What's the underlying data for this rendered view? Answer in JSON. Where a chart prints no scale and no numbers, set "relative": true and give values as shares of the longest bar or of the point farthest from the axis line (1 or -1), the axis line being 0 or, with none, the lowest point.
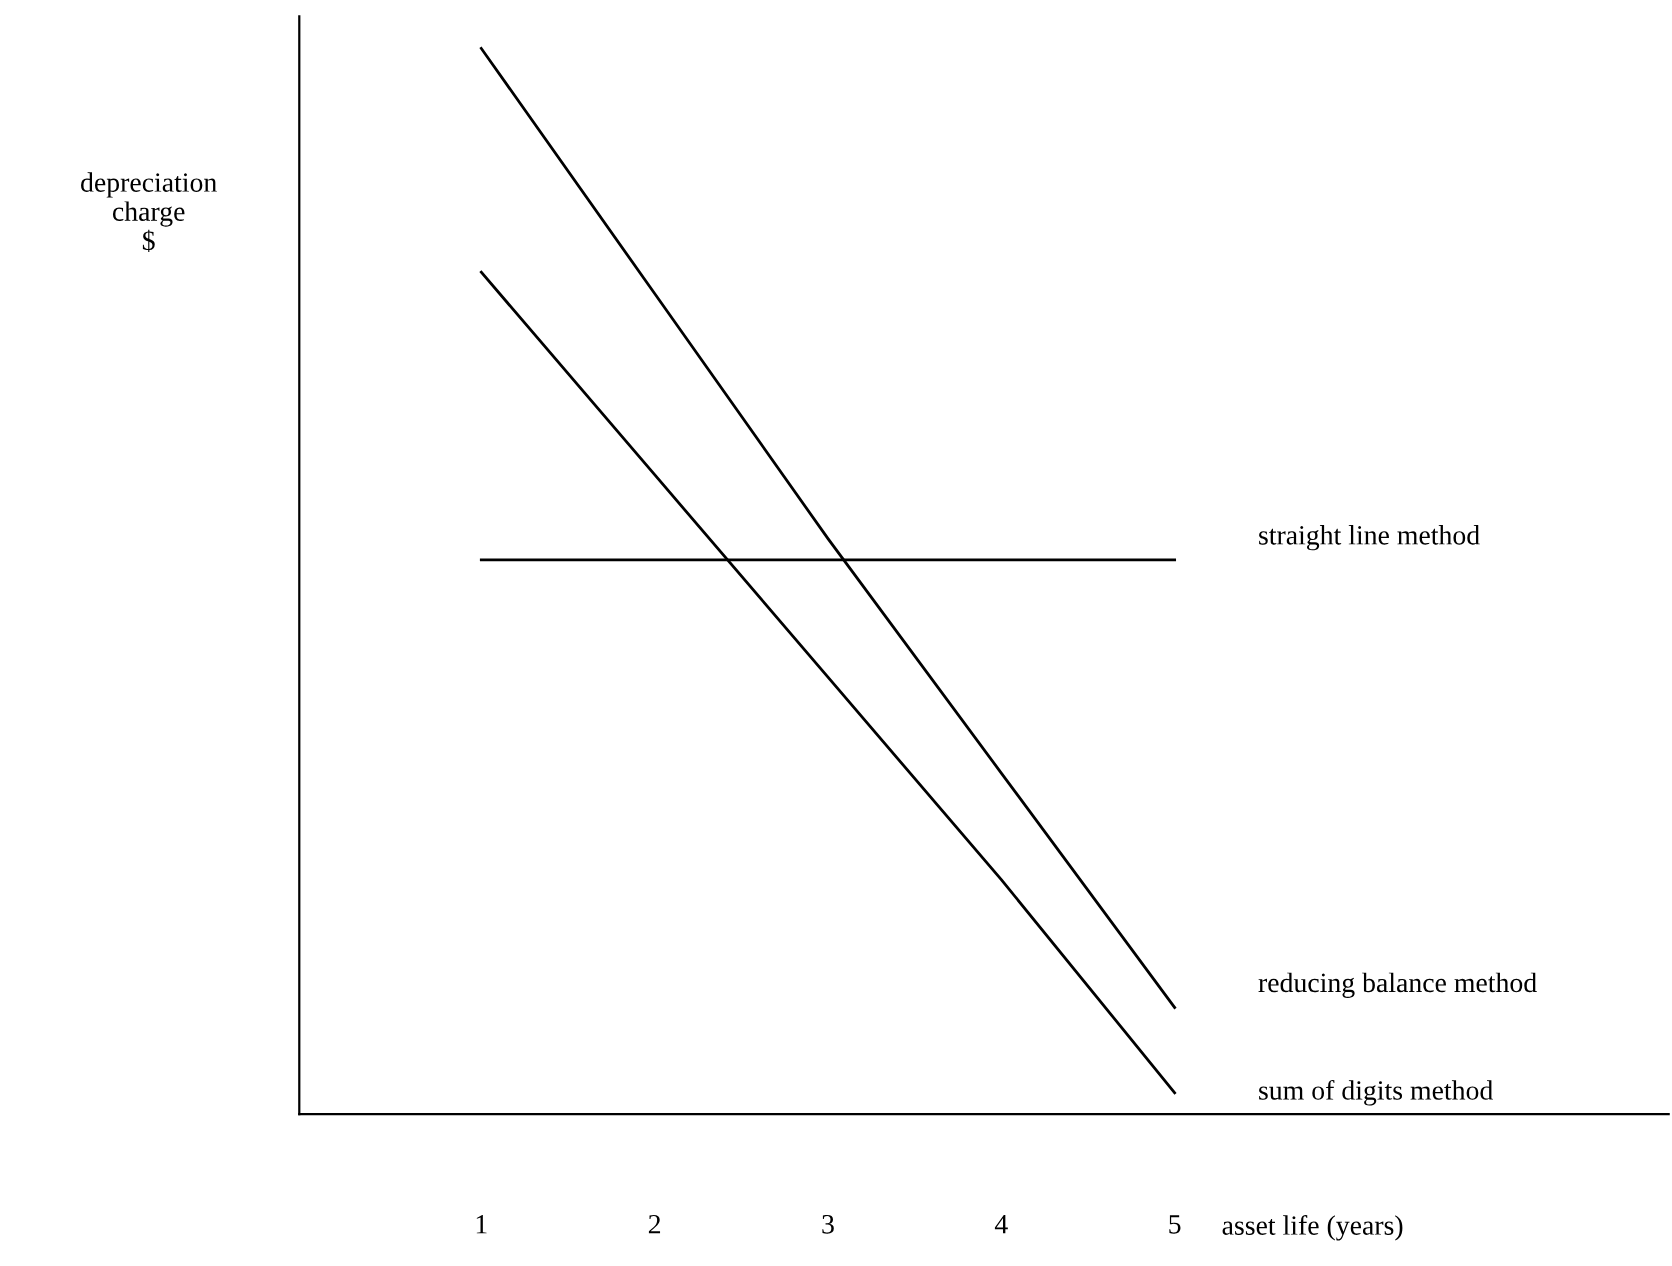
{
  "chart_data": {
    "type": "line",
    "relative": true,
    "xlabel": "asset life (years)",
    "ylabel": "depreciation\ncharge\n$",
    "x": [
      1,
      2,
      3,
      4,
      5
    ],
    "xlim": [
      -0.05,
      7.85
    ],
    "xticks": [
      1,
      2,
      3,
      4,
      5
    ],
    "tick_labels": "x",
    "grid": false,
    "legend": false,
    "marker": "none",
    "line_style": "solid",
    "series": [
      {
        "name": "straight line method",
        "color": "#000000",
        "values": [
          0.52,
          0.52,
          0.52,
          0.52,
          0.52
        ]
      },
      {
        "name": "reducing balance method",
        "color": "#000000",
        "values": [
          1,
          0.77,
          0.54,
          0.32,
          0.1
        ]
      },
      {
        "name": "sum of digits method",
        "color": "#000000",
        "values": [
          0.79,
          0.6,
          0.41,
          0.22,
          0.02
        ]
      }
    ]
  }
}
